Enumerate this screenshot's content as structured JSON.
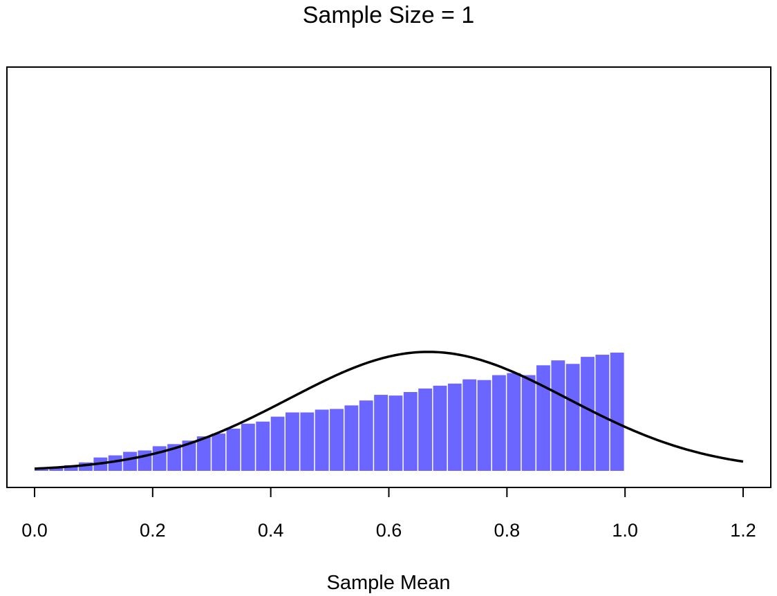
{
  "chart_data": {
    "type": "bar",
    "title": "Sample Size = 1",
    "xlabel": "Sample Mean",
    "ylabel": "",
    "xlim": [
      -0.05,
      1.22
    ],
    "ylim": [
      0,
      5.6
    ],
    "xticks": [
      "0.0",
      "0.2",
      "0.4",
      "0.6",
      "0.8",
      "1.0",
      "1.2"
    ],
    "xtick_values": [
      0.0,
      0.2,
      0.4,
      0.6,
      0.8,
      1.0,
      1.2
    ],
    "bin_width": 0.025,
    "bin_starts": [
      0.0,
      0.025,
      0.05,
      0.075,
      0.1,
      0.125,
      0.15,
      0.175,
      0.2,
      0.225,
      0.25,
      0.275,
      0.3,
      0.325,
      0.35,
      0.375,
      0.4,
      0.425,
      0.45,
      0.475,
      0.5,
      0.525,
      0.55,
      0.575,
      0.6,
      0.625,
      0.65,
      0.675,
      0.7,
      0.725,
      0.75,
      0.775,
      0.8,
      0.825,
      0.85,
      0.875,
      0.9,
      0.925,
      0.95,
      0.975
    ],
    "values": [
      0.02,
      0.06,
      0.08,
      0.12,
      0.19,
      0.22,
      0.27,
      0.29,
      0.35,
      0.38,
      0.43,
      0.49,
      0.53,
      0.6,
      0.67,
      0.7,
      0.77,
      0.83,
      0.83,
      0.87,
      0.88,
      0.93,
      1.0,
      1.08,
      1.07,
      1.12,
      1.17,
      1.21,
      1.24,
      1.3,
      1.29,
      1.36,
      1.39,
      1.36,
      1.5,
      1.57,
      1.52,
      1.62,
      1.65,
      1.68
    ],
    "bar_color": "#6B66FF",
    "curve": {
      "name": "Normal density",
      "mean": 0.667,
      "sd": 0.236,
      "x_range": [
        0.0,
        1.2
      ],
      "color": "#000000"
    }
  }
}
